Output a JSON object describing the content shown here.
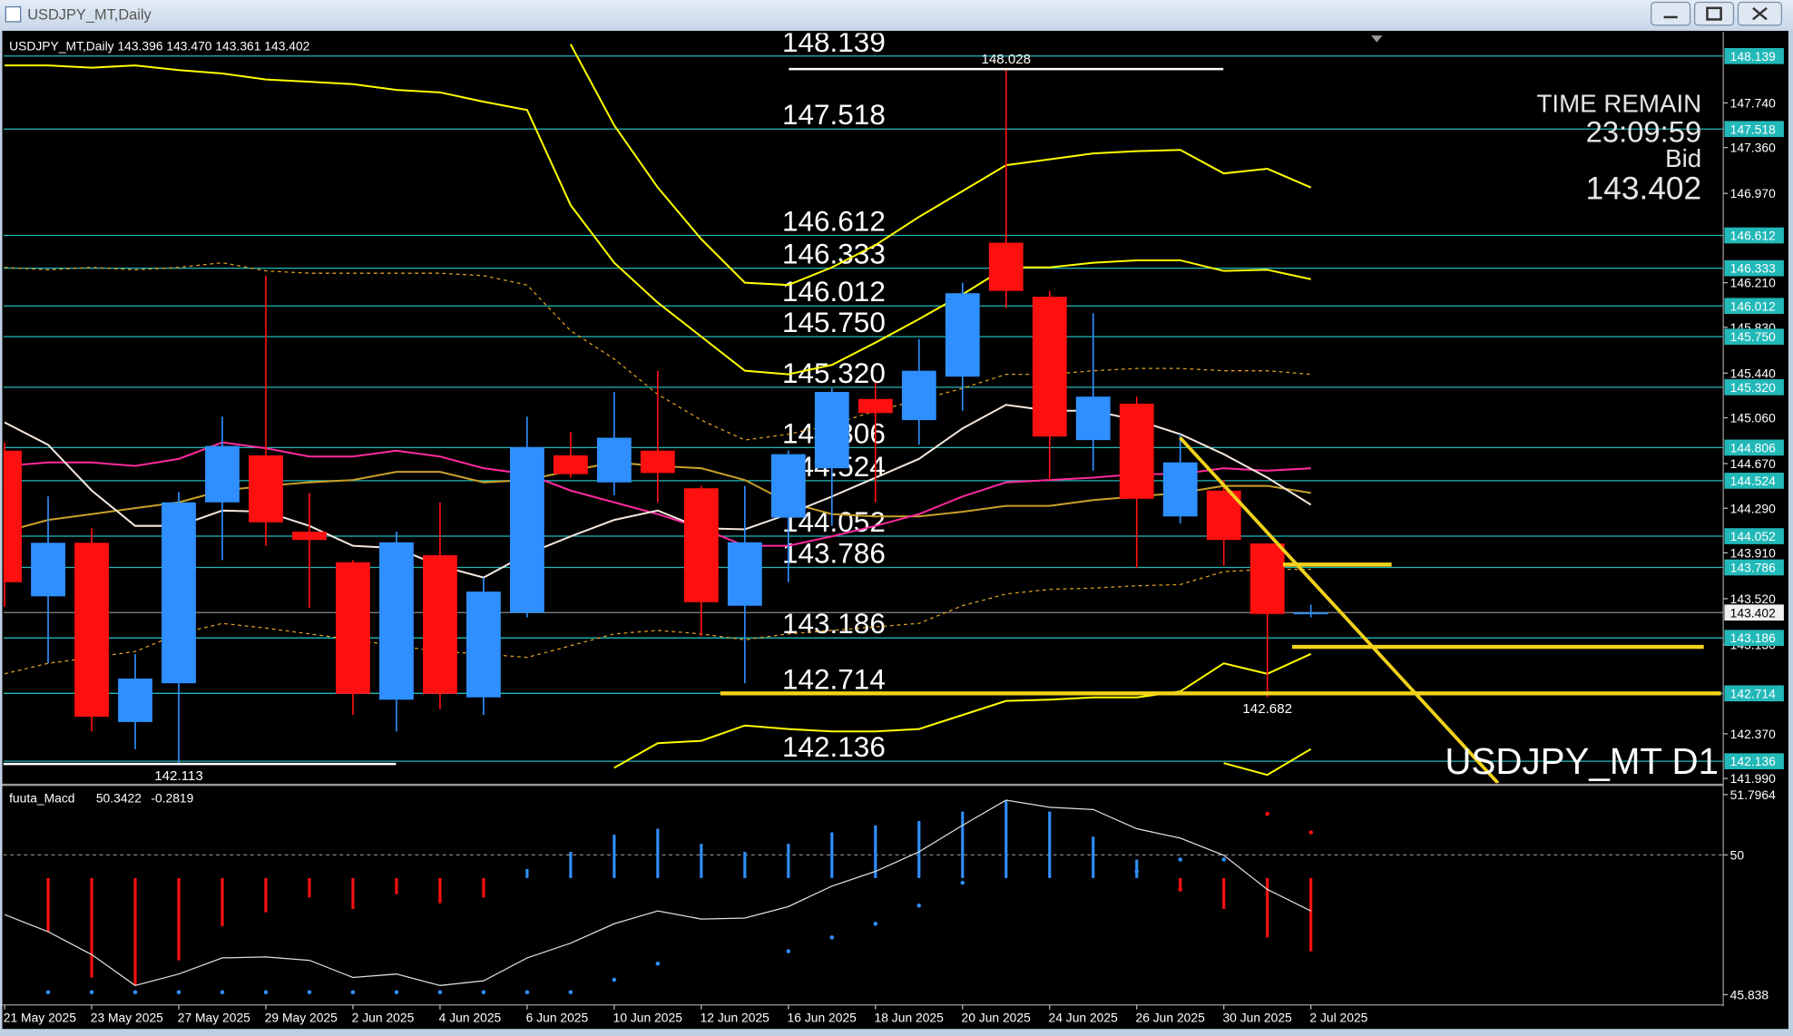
{
  "window": {
    "title": "USDJPY_MT,Daily"
  },
  "chart_data": {
    "type": "candlestick",
    "header": "USDJPY_MT,Daily  143.396 143.470 143.361 143.402",
    "categories": [
      "21 May 2025",
      null,
      "23 May 2025",
      null,
      "27 May 2025",
      null,
      "29 May 2025",
      null,
      "2 Jun 2025",
      null,
      "4 Jun 2025",
      null,
      "6 Jun 2025",
      null,
      "10 Jun 2025",
      null,
      "12 Jun 2025",
      null,
      "16 Jun 2025",
      null,
      "18 Jun 2025",
      null,
      "20 Jun 2025",
      null,
      "24 Jun 2025",
      null,
      "26 Jun 2025",
      null,
      "30 Jun 2025",
      null,
      "2 Jul 2025"
    ],
    "open": [
      144.78,
      143.54,
      143.996,
      142.47,
      142.8,
      144.34,
      144.74,
      144.09,
      143.83,
      142.66,
      143.89,
      142.68,
      143.4,
      144.74,
      144.51,
      144.78,
      144.46,
      143.46,
      144.21,
      144.63,
      145.22,
      145.04,
      145.41,
      146.55,
      146.09,
      144.87,
      145.18,
      144.22,
      144.44,
      143.99,
      143.396
    ],
    "high": [
      144.85,
      144.39,
      144.12,
      143.05,
      144.43,
      145.07,
      146.27,
      144.42,
      143.85,
      144.09,
      144.34,
      143.7,
      145.07,
      144.94,
      145.28,
      145.46,
      144.48,
      144.48,
      144.78,
      145.31,
      145.36,
      145.73,
      146.21,
      148.028,
      146.14,
      145.95,
      145.24,
      144.92,
      144.53,
      143.99,
      143.47
    ],
    "low": [
      143.45,
      142.97,
      142.39,
      142.24,
      142.113,
      143.85,
      143.97,
      143.44,
      142.53,
      142.39,
      142.58,
      142.53,
      143.36,
      144.55,
      144.4,
      144.34,
      143.2,
      142.8,
      143.66,
      144.14,
      144.34,
      144.83,
      145.12,
      145.995,
      144.53,
      144.61,
      143.78,
      144.16,
      143.8,
      142.682,
      143.361
    ],
    "close": [
      143.66,
      143.996,
      142.515,
      142.84,
      144.34,
      144.82,
      144.17,
      144.02,
      142.71,
      144.0,
      142.71,
      143.58,
      144.81,
      144.58,
      144.89,
      144.59,
      143.49,
      144.0,
      144.75,
      145.28,
      145.1,
      145.46,
      146.12,
      146.14,
      144.9,
      145.24,
      144.37,
      144.68,
      144.02,
      143.39,
      143.402
    ],
    "up_color": "#2f8fff",
    "down_color": "#ff1010",
    "ylim": [
      141.95,
      148.334
    ],
    "yticks": [
      {
        "value": 147.74,
        "label": "147.740"
      },
      {
        "value": 147.36,
        "label": "147.360"
      },
      {
        "value": 146.97,
        "label": "146.970"
      },
      {
        "value": 146.21,
        "label": "146.210"
      },
      {
        "value": 145.83,
        "label": "145.830"
      },
      {
        "value": 145.44,
        "label": "145.440"
      },
      {
        "value": 145.06,
        "label": "145.060"
      },
      {
        "value": 144.67,
        "label": "144.670"
      },
      {
        "value": 144.29,
        "label": "144.290"
      },
      {
        "value": 143.91,
        "label": "143.910"
      },
      {
        "value": 143.52,
        "label": "143.520"
      },
      {
        "value": 143.13,
        "label": "143.130"
      },
      {
        "value": 142.37,
        "label": "142.370"
      },
      {
        "value": 141.99,
        "label": "141.990"
      }
    ],
    "levels": [
      {
        "value": 148.139,
        "label": "148.139"
      },
      {
        "value": 147.518,
        "label": "147.518"
      },
      {
        "value": 146.612,
        "label": "146.612"
      },
      {
        "value": 146.333,
        "label": "146.333"
      },
      {
        "value": 146.012,
        "label": "146.012"
      },
      {
        "value": 145.75,
        "label": "145.750"
      },
      {
        "value": 145.32,
        "label": "145.320"
      },
      {
        "value": 144.806,
        "label": "144.806"
      },
      {
        "value": 144.524,
        "label": "144.524"
      },
      {
        "value": 144.052,
        "label": "144.052"
      },
      {
        "value": 143.786,
        "label": "143.786"
      },
      {
        "value": 143.186,
        "label": "143.186"
      },
      {
        "value": 142.714,
        "label": "142.714"
      },
      {
        "value": 142.136,
        "label": "142.136"
      }
    ],
    "level_color": "#22b8b8",
    "bid": {
      "value": 143.402,
      "label": "143.402"
    },
    "annotations": [
      {
        "value": 148.028,
        "label": "148.028",
        "underline": true
      },
      {
        "value": 142.113,
        "label": "142.113",
        "underline": true
      },
      {
        "value": 142.682,
        "label": "142.682",
        "underline": false
      }
    ],
    "drawn_lines": [
      142.714,
      143.11,
      143.81
    ],
    "drawn_color": "#f2d21a",
    "trendline": [
      144.89,
      141.95
    ],
    "overlays": [
      {
        "color": "#ffff00",
        "style": "solid",
        "values": [
          null,
          null,
          null,
          null,
          null,
          null,
          null,
          null,
          null,
          null,
          null,
          null,
          null,
          148.24,
          147.55,
          147.02,
          146.58,
          146.21,
          146.19,
          146.34,
          146.53,
          146.77,
          146.99,
          147.21,
          147.26,
          147.31,
          147.33,
          147.34,
          147.14,
          147.18,
          147.02
        ]
      },
      {
        "color": "#ffff00",
        "style": "solid",
        "values": [
          148.06,
          148.06,
          148.04,
          148.06,
          148.02,
          147.99,
          147.94,
          147.92,
          147.9,
          147.85,
          147.83,
          147.75,
          147.68,
          146.87,
          146.38,
          146.04,
          145.75,
          145.46,
          145.43,
          145.51,
          145.7,
          145.9,
          146.11,
          146.34,
          146.34,
          146.38,
          146.4,
          146.4,
          146.31,
          146.32,
          146.24
        ]
      },
      {
        "color": "#ffff00",
        "style": "solid",
        "values": [
          null,
          null,
          null,
          null,
          null,
          null,
          null,
          null,
          null,
          null,
          null,
          null,
          null,
          null,
          142.08,
          142.29,
          142.31,
          142.44,
          142.41,
          142.39,
          142.39,
          142.41,
          142.53,
          142.65,
          142.66,
          142.68,
          142.68,
          142.73,
          142.97,
          142.88,
          143.05
        ]
      },
      {
        "color": "#ffff00",
        "style": "solid",
        "values": [
          null,
          null,
          null,
          null,
          null,
          null,
          null,
          null,
          null,
          null,
          null,
          null,
          null,
          null,
          null,
          null,
          null,
          null,
          null,
          null,
          null,
          null,
          null,
          null,
          null,
          null,
          null,
          null,
          142.12,
          142.02,
          142.24
        ]
      },
      {
        "color": "#e0a020",
        "style": "dashed",
        "values": [
          146.34,
          146.32,
          146.34,
          146.32,
          146.34,
          146.38,
          146.31,
          146.29,
          146.29,
          146.29,
          146.29,
          146.27,
          146.19,
          145.8,
          145.56,
          145.26,
          145.04,
          144.87,
          144.92,
          145.0,
          145.12,
          145.21,
          145.31,
          145.43,
          145.43,
          145.46,
          145.48,
          145.48,
          145.46,
          145.46,
          145.43
        ]
      },
      {
        "color": "#e0a020",
        "style": "dashed",
        "values": [
          142.88,
          142.97,
          143.02,
          143.07,
          143.22,
          143.31,
          143.27,
          143.22,
          143.17,
          143.12,
          143.07,
          143.05,
          143.02,
          143.12,
          143.22,
          143.25,
          143.22,
          143.17,
          143.22,
          143.25,
          143.28,
          143.31,
          143.46,
          143.56,
          143.6,
          143.61,
          143.63,
          143.64,
          143.75,
          143.77,
          143.77
        ]
      },
      {
        "color": "#c8a028",
        "style": "solid",
        "values": [
          144.09,
          144.19,
          144.24,
          144.29,
          144.34,
          144.44,
          144.48,
          144.51,
          144.53,
          144.6,
          144.6,
          144.51,
          144.53,
          144.61,
          144.68,
          144.65,
          144.63,
          144.53,
          144.34,
          144.24,
          144.22,
          144.22,
          144.26,
          144.31,
          144.31,
          144.36,
          144.39,
          144.42,
          144.48,
          144.48,
          144.42
        ]
      },
      {
        "color": "#ff2a9e",
        "style": "solid",
        "values": [
          144.65,
          144.68,
          144.68,
          144.65,
          144.71,
          144.85,
          144.8,
          144.73,
          144.73,
          144.78,
          144.73,
          144.63,
          144.58,
          144.44,
          144.34,
          144.24,
          144.12,
          143.97,
          143.97,
          144.05,
          144.14,
          144.24,
          144.39,
          144.51,
          144.53,
          144.55,
          144.58,
          144.58,
          144.63,
          144.61,
          144.63
        ]
      },
      {
        "color": "#f4e6dc",
        "style": "solid",
        "values": [
          145.02,
          144.83,
          144.44,
          144.14,
          144.14,
          144.27,
          144.26,
          144.14,
          143.97,
          143.95,
          143.8,
          143.7,
          143.9,
          144.05,
          144.19,
          144.27,
          144.12,
          144.11,
          144.24,
          144.39,
          144.55,
          144.71,
          144.97,
          145.17,
          145.12,
          145.12,
          145.04,
          144.92,
          144.75,
          144.55,
          144.32
        ]
      }
    ],
    "info": {
      "time_label": "TIME REMAIN",
      "time": "23:09:59",
      "bid_label": "Bid"
    },
    "watermark": "USDJPY_MT D1",
    "indicator": {
      "title": "fuuta_Macd",
      "header_values": [
        50.3422,
        -0.2819
      ],
      "ylim": [
        45.566,
        52.035
      ],
      "yticks": [
        51.7964,
        50,
        45.838
      ],
      "dashed_levels": [
        50
      ],
      "histogram": {
        "base": 49.31,
        "up_color": "#2f8fff",
        "down_color": "#ff1010",
        "values": [
          null,
          47.71,
          46.35,
          46.11,
          46.86,
          47.88,
          48.29,
          48.73,
          48.39,
          48.83,
          48.56,
          48.73,
          49.58,
          50.09,
          50.6,
          50.78,
          50.33,
          50.09,
          50.33,
          50.67,
          50.88,
          51.01,
          51.29,
          51.63,
          51.29,
          50.54,
          49.86,
          48.97,
          48.39,
          47.54,
          47.13
        ]
      },
      "signal": {
        "color": "#dddddd",
        "values": [
          48.22,
          47.71,
          47.03,
          46.11,
          46.45,
          46.93,
          46.96,
          46.86,
          46.35,
          46.45,
          46.11,
          46.25,
          46.93,
          47.37,
          47.95,
          48.33,
          48.09,
          48.12,
          48.46,
          49.07,
          49.51,
          50.09,
          50.88,
          51.63,
          51.42,
          51.35,
          50.78,
          50.5,
          49.99,
          48.97,
          48.33
        ]
      },
      "dots": [
        {
          "color": "#2f8fff",
          "values": [
            null,
            45.91,
            45.91,
            45.91,
            45.91,
            45.91,
            45.91,
            45.91,
            45.91,
            45.91,
            45.91,
            45.91,
            45.91,
            45.91,
            46.28,
            46.76,
            null,
            null,
            47.13,
            47.54,
            47.95,
            48.49,
            49.17,
            null,
            null,
            null,
            49.51,
            49.86,
            49.86,
            null,
            null
          ]
        },
        {
          "color": "#ff1010",
          "values": [
            null,
            null,
            null,
            null,
            null,
            null,
            null,
            null,
            null,
            null,
            null,
            null,
            null,
            null,
            null,
            null,
            null,
            null,
            null,
            null,
            null,
            null,
            null,
            null,
            null,
            null,
            null,
            48.97,
            null,
            51.22,
            50.67
          ]
        }
      ]
    }
  }
}
